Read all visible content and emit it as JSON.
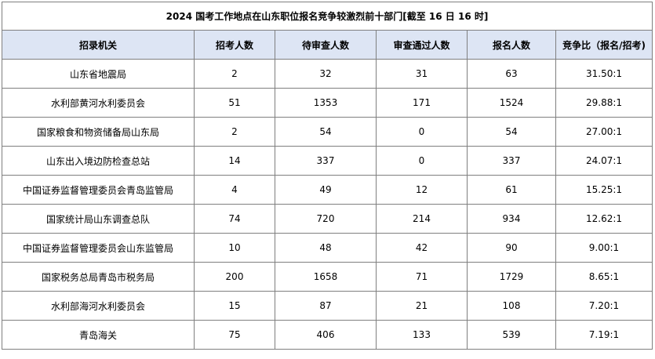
{
  "title": "2024 国考工作地点在山东职位报名竞争较激烈前十部门[截至 16 日 16 时]",
  "headers": [
    "招录机关",
    "招考人数",
    "待审查人数",
    "审查通过人数",
    "报名人数",
    "竞争比（报名/招考)"
  ],
  "rows": [
    [
      "山东省地震局",
      "2",
      "32",
      "31",
      "63",
      "31.50:1"
    ],
    [
      "水利部黄河水利委员会",
      "51",
      "1353",
      "171",
      "1524",
      "29.88:1"
    ],
    [
      "国家粮食和物资储备局山东局",
      "2",
      "54",
      "0",
      "54",
      "27.00:1"
    ],
    [
      "山东出入境边防检查总站",
      "14",
      "337",
      "0",
      "337",
      "24.07:1"
    ],
    [
      "中国证券监督管理委员会青岛监管局",
      "4",
      "49",
      "12",
      "61",
      "15.25:1"
    ],
    [
      "国家统计局山东调查总队",
      "74",
      "720",
      "214",
      "934",
      "12.62:1"
    ],
    [
      "中国证券监督管理委员会山东监管局",
      "10",
      "48",
      "42",
      "90",
      "9.00:1"
    ],
    [
      "国家税务总局青岛市税务局",
      "200",
      "1658",
      "71",
      "1729",
      "8.65:1"
    ],
    [
      "水利部海河水利委员会",
      "15",
      "87",
      "21",
      "108",
      "7.20:1"
    ],
    [
      "青岛海关",
      "75",
      "406",
      "133",
      "539",
      "7.19:1"
    ]
  ],
  "colors": {
    "header_bg": "#dde5f4",
    "border": "#7f7f7f"
  }
}
